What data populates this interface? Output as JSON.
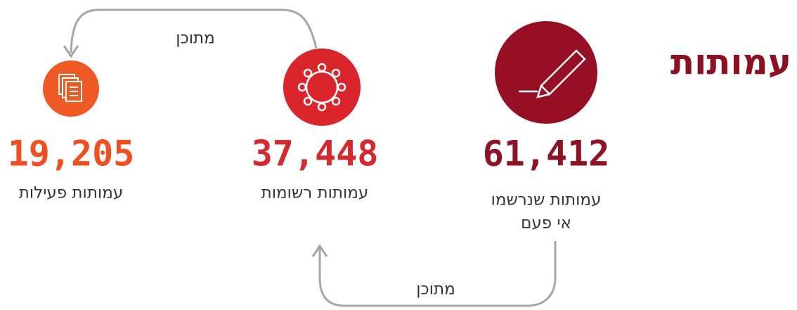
{
  "title": "עמותות",
  "stats": [
    {
      "number": "61,412",
      "label": [
        "עמותות שנרשמו",
        "אי פעם"
      ]
    },
    {
      "number": "37,448",
      "label": [
        "עמותות רשומות"
      ]
    },
    {
      "number": "19,205",
      "label": [
        "עמותות פעילות"
      ]
    }
  ],
  "arrows": [
    {
      "label": "מתוכן"
    },
    {
      "label": "מתוכן"
    }
  ]
}
